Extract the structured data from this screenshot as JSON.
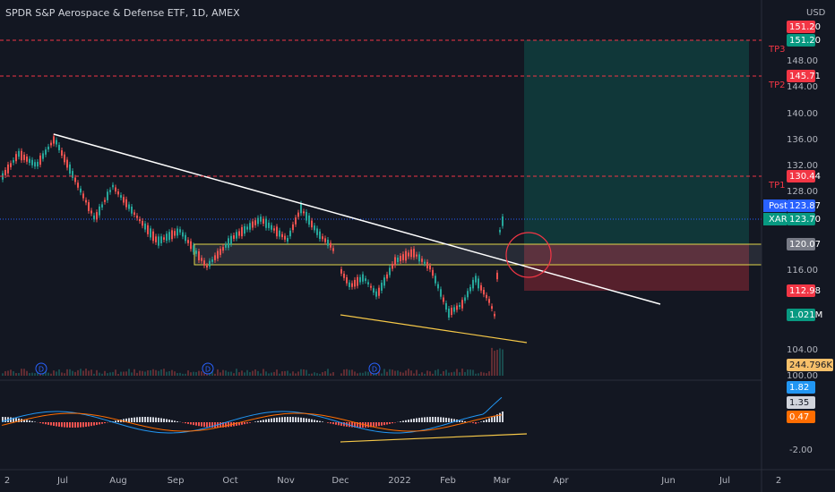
{
  "header": {
    "title": "SPDR S&P Aerospace & Defense ETF, 1D, AMEX",
    "currency": "USD"
  },
  "price_axis": [
    "148.00",
    "144.00",
    "140.00",
    "136.00",
    "132.00",
    "128.00",
    "116.00",
    "104.00",
    "100.00"
  ],
  "time_axis": [
    "2",
    "Jul",
    "Aug",
    "Sep",
    "Oct",
    "Nov",
    "Dec",
    "2022",
    "Feb",
    "Mar",
    "Apr",
    "Jun",
    "Jul",
    "2"
  ],
  "badges": [
    {
      "label": "151.20",
      "color": "#f23645"
    },
    {
      "label": "151.20",
      "color": "#089981"
    },
    {
      "label": "145.71",
      "color": "#f23645"
    },
    {
      "label": "130.44",
      "color": "#f23645"
    },
    {
      "label": "123.87",
      "color": "#2962ff",
      "tag": "Post"
    },
    {
      "label": "123.70",
      "color": "#089981",
      "tag": "XAR"
    },
    {
      "label": "120.07",
      "color": "#787b86"
    },
    {
      "label": "112.98",
      "color": "#f23645"
    },
    {
      "label": "1.021M",
      "color": "#089981"
    },
    {
      "label": "244.796K",
      "color": "#f7c06a"
    }
  ],
  "targets": [
    "TP3",
    "TP2",
    "TP1"
  ],
  "events": [
    "D",
    "D",
    "D"
  ],
  "macd_axis": [
    {
      "label": "1.82",
      "color": "#2196f3"
    },
    {
      "label": "1.35",
      "color": "#d1d4dc"
    },
    {
      "label": "0.47",
      "color": "#ff6d00"
    },
    {
      "label": "-2.00",
      "color": null
    }
  ]
}
